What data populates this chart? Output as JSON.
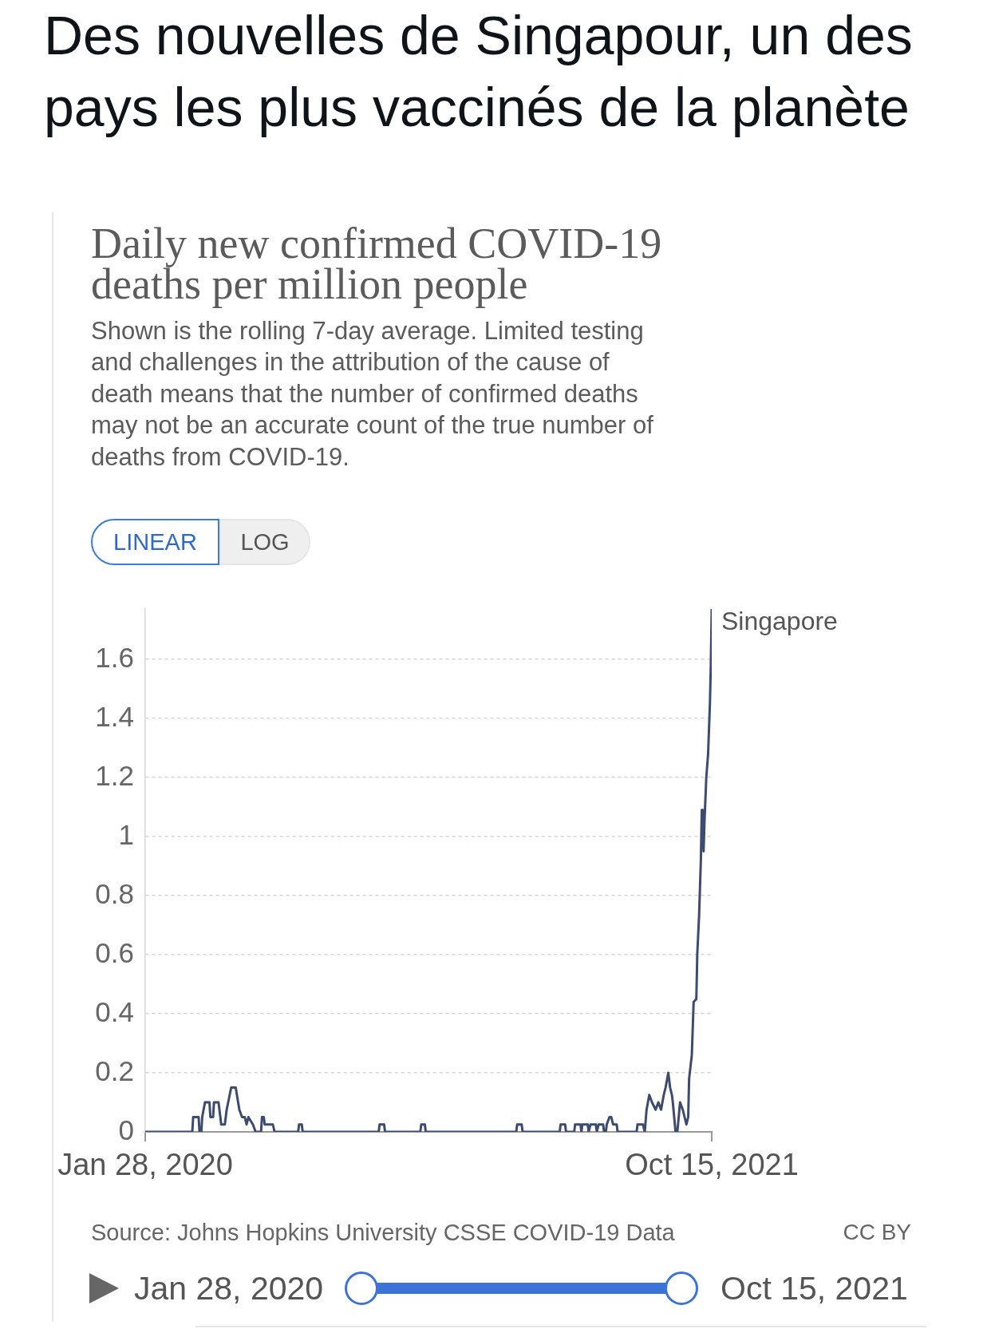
{
  "chart_data": {
    "type": "line",
    "title": "Des nouvelles de Singapour, un des pays les plus vaccinés de la planète",
    "subtitle": "Daily new confirmed COVID-19 deaths per million people",
    "annotations": [
      "Shown is the rolling 7-day average. Limited testing and challenges in the attribution of the cause of death means that the number of confirmed deaths may not be an accurate count of the true number of deaths from COVID-19.",
      "LINEAR",
      "LOG",
      "Source: Johns Hopkins University CSSE COVID-19 Data",
      "CC BY",
      "Jan 28, 2020",
      "Oct 15, 2021"
    ],
    "x": [
      "2020-01-28",
      "2020-03-20",
      "2020-03-21",
      "2020-03-27",
      "2020-03-28",
      "2020-03-30",
      "2020-03-31",
      "2020-04-03",
      "2020-04-08",
      "2020-04-09",
      "2020-04-12",
      "2020-04-13",
      "2020-04-18",
      "2020-04-21",
      "2020-04-25",
      "2020-04-27",
      "2020-05-02",
      "2020-05-07",
      "2020-05-11",
      "2020-05-14",
      "2020-05-17",
      "2020-05-19",
      "2020-05-21",
      "2020-05-26",
      "2020-05-29",
      "2020-06-04",
      "2020-06-05",
      "2020-06-07",
      "2020-06-08",
      "2020-06-17",
      "2020-06-19",
      "2020-07-15",
      "2020-07-16",
      "2020-07-19",
      "2020-07-20",
      "2020-10-12",
      "2020-10-13",
      "2020-10-18",
      "2020-10-19",
      "2020-11-27",
      "2020-11-28",
      "2020-12-02",
      "2020-12-03",
      "2021-03-13",
      "2021-03-14",
      "2021-03-19",
      "2021-03-20",
      "2021-04-30",
      "2021-05-01",
      "2021-05-06",
      "2021-05-07",
      "2021-05-16",
      "2021-05-17",
      "2021-05-23",
      "2021-05-24",
      "2021-05-25",
      "2021-05-31",
      "2021-06-01",
      "2021-06-03",
      "2021-06-09",
      "2021-06-10",
      "2021-06-12",
      "2021-06-17",
      "2021-06-18",
      "2021-06-20",
      "2021-06-21",
      "2021-06-24",
      "2021-06-26",
      "2021-06-28",
      "2021-07-02",
      "2021-07-03",
      "2021-07-24",
      "2021-07-25",
      "2021-07-31",
      "2021-08-02",
      "2021-08-04",
      "2021-08-07",
      "2021-08-10",
      "2021-08-14",
      "2021-08-17",
      "2021-08-20",
      "2021-08-23",
      "2021-08-25",
      "2021-08-28",
      "2021-08-30",
      "2021-09-01",
      "2021-09-02",
      "2021-09-05",
      "2021-09-07",
      "2021-09-10",
      "2021-09-13",
      "2021-09-17",
      "2021-09-19",
      "2021-09-20",
      "2021-09-23",
      "2021-09-25",
      "2021-09-28",
      "2021-09-29",
      "2021-10-01",
      "2021-10-03",
      "2021-10-04",
      "2021-10-05",
      "2021-10-06",
      "2021-10-07",
      "2021-10-09",
      "2021-10-11",
      "2021-10-13",
      "2021-10-14",
      "2021-10-15"
    ],
    "series": [
      {
        "name": "Singapore",
        "color": "#3c4b6e",
        "values": [
          0,
          0,
          0.05,
          0.05,
          0,
          0,
          0.05,
          0.1,
          0.1,
          0.05,
          0.05,
          0.1,
          0.1,
          0.025,
          0.025,
          0.075,
          0.15,
          0.15,
          0.075,
          0.05,
          0.05,
          0.025,
          0.05,
          0.025,
          0,
          0,
          0.05,
          0.05,
          0.025,
          0.025,
          0,
          0,
          0.025,
          0.025,
          0,
          0,
          0.025,
          0.025,
          0,
          0,
          0.025,
          0.025,
          0,
          0,
          0.025,
          0.025,
          0,
          0,
          0.025,
          0.025,
          0,
          0,
          0.025,
          0.025,
          0,
          0.025,
          0.025,
          0,
          0.025,
          0.025,
          0,
          0.025,
          0.025,
          0,
          0,
          0.025,
          0.05,
          0.05,
          0.025,
          0.025,
          0,
          0,
          0.025,
          0.025,
          0,
          0.075,
          0.125,
          0.1,
          0.075,
          0.1,
          0.075,
          0.125,
          0.15,
          0.2,
          0.15,
          0.125,
          0.1,
          0,
          0,
          0.1,
          0.075,
          0.025,
          0.05,
          0.18,
          0.26,
          0.44,
          0.45,
          0.6,
          0.73,
          0.92,
          1.09,
          1.09,
          0.95,
          1.05,
          1.2,
          1.28,
          1.45,
          1.58,
          1.77
        ]
      }
    ],
    "xlim": [
      "2020-01-28",
      "2021-10-15"
    ],
    "xticks": [
      {
        "value": "2020-01-28",
        "label": "Jan 28, 2020"
      },
      {
        "value": "2021-10-15",
        "label": "Oct 15, 2021"
      }
    ],
    "ylim": [
      0,
      1.77
    ],
    "yticks": [
      0,
      0.2,
      0.4,
      0.6,
      0.8,
      1,
      1.2,
      1.4,
      1.6
    ],
    "grid": "y"
  }
}
